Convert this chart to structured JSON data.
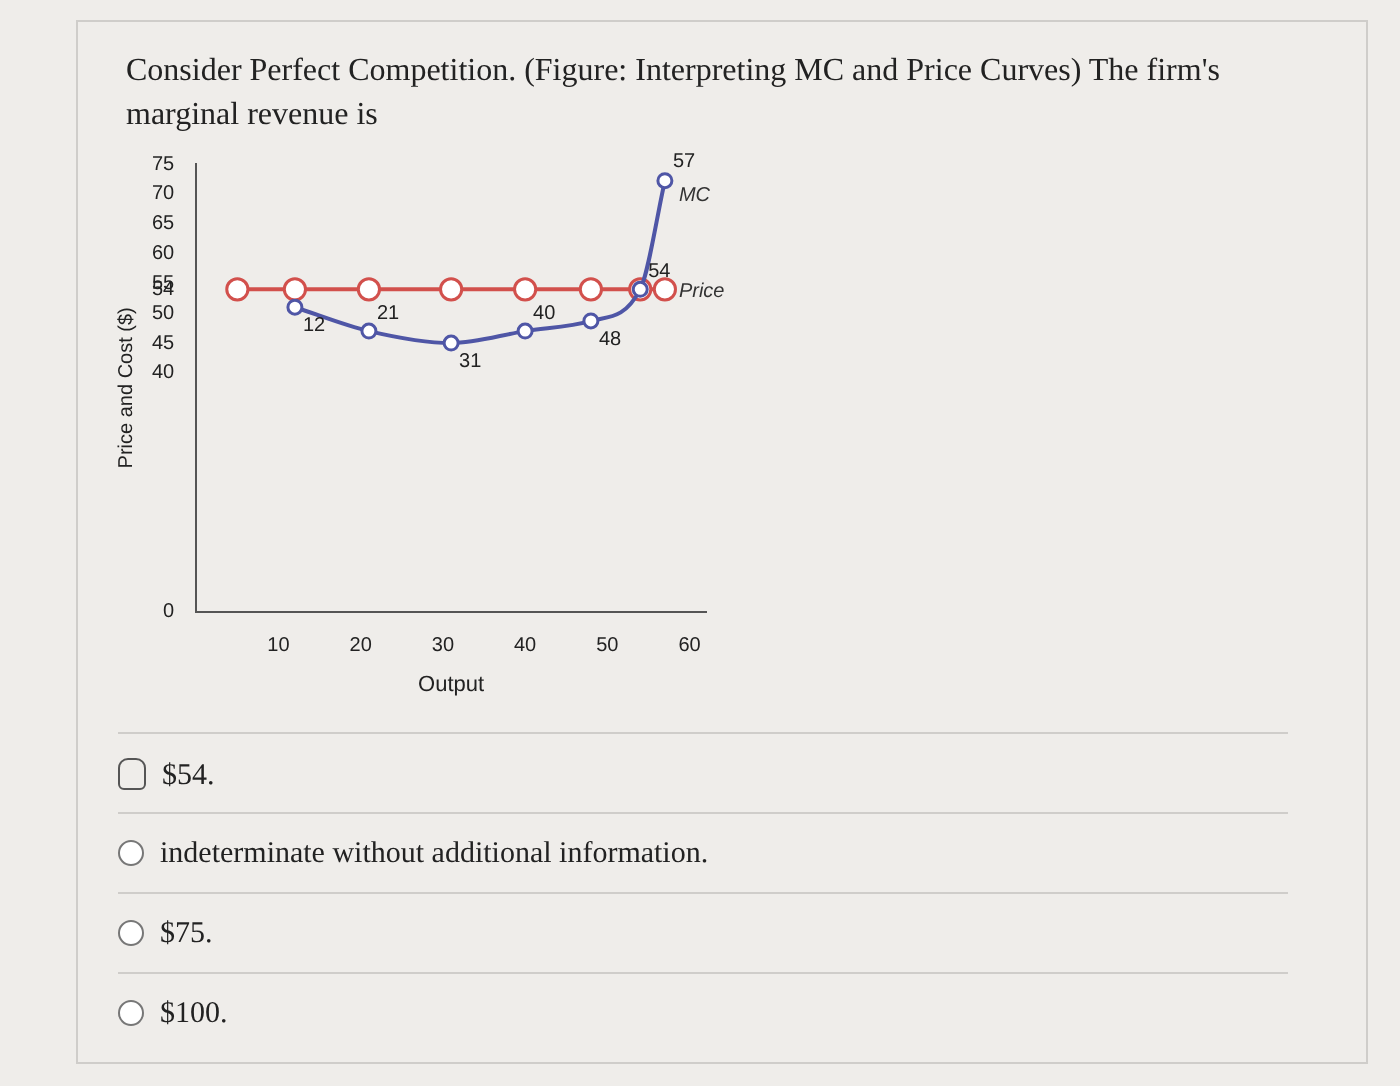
{
  "chart_data": {
    "type": "line",
    "title": "Consider Perfect Competition. (Figure: Interpreting MC and Price Curves) The firm's marginal revenue is",
    "xlabel": "Output",
    "ylabel": "Price and Cost ($)",
    "series": [
      {
        "name": "Price",
        "color": "#d2504c",
        "x": [
          5,
          12,
          21,
          31,
          40,
          48,
          54,
          57
        ],
        "values": [
          54,
          54,
          54,
          54,
          54,
          54,
          54,
          54
        ]
      },
      {
        "name": "MC",
        "color": "#4f56a6",
        "x": [
          12,
          21,
          31,
          40,
          48,
          54,
          57
        ],
        "values": [
          51,
          47,
          45,
          47,
          48.7,
          54,
          72.2
        ]
      }
    ],
    "xlim": [
      0,
      62
    ],
    "xticks": [
      10,
      20,
      30,
      40,
      50,
      60
    ],
    "ylim": [
      0,
      75
    ],
    "yticks": [
      0,
      40,
      45,
      50,
      54,
      55,
      60,
      65,
      70,
      75
    ],
    "grid": false,
    "legend": false,
    "marker": "circle",
    "line_style": "solid",
    "annotations": [
      {
        "text": "12",
        "x": 12,
        "y": 51
      },
      {
        "text": "21",
        "x": 21,
        "y": 47
      },
      {
        "text": "31",
        "x": 31,
        "y": 45
      },
      {
        "text": "40",
        "x": 40,
        "y": 47
      },
      {
        "text": "48",
        "x": 48,
        "y": 48.7
      },
      {
        "text": "54",
        "x": 54,
        "y": 54
      },
      {
        "text": "57",
        "x": 57,
        "y": 72.2
      },
      "$54.",
      "indeterminate without additional information.",
      "$75.",
      "$100."
    ]
  }
}
